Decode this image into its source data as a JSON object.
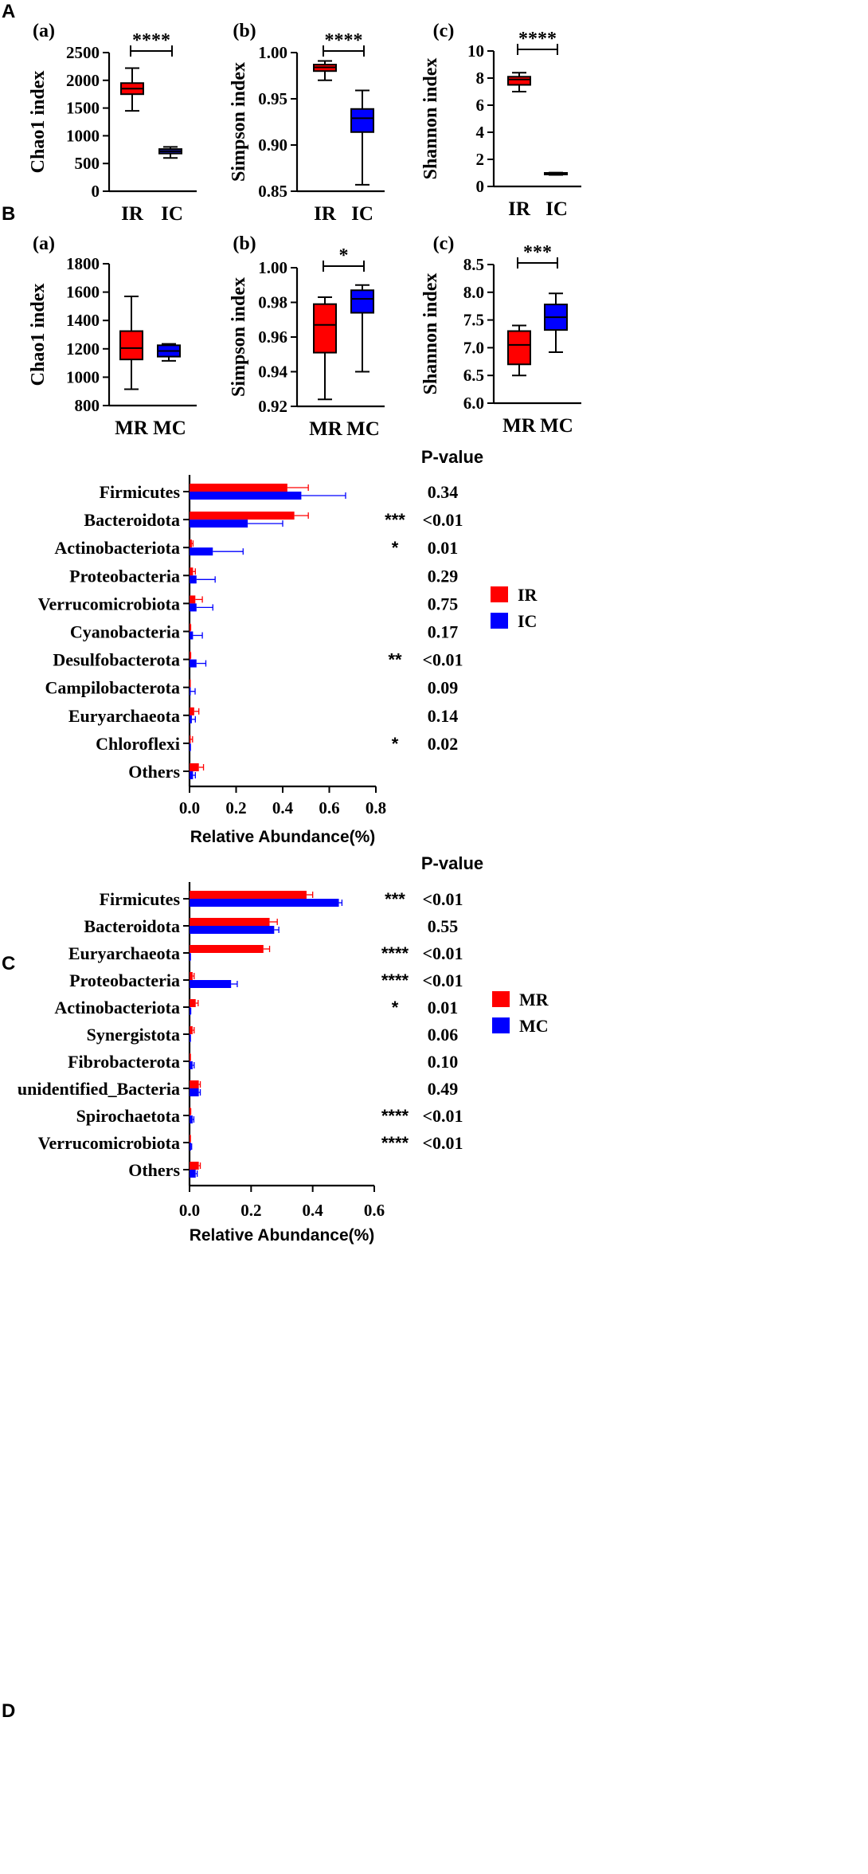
{
  "colors": {
    "ir": "#ff0000",
    "ic": "#0000ff",
    "mr": "#ff0000",
    "mc": "#0000ff",
    "ic_chao": "#1a1aa8",
    "ic_shannon": "#1a1aa8"
  },
  "sections": {
    "A": "A",
    "B": "B",
    "C": "C",
    "D": "D"
  },
  "chart_data": [
    {
      "type": "box",
      "id": "A-a",
      "panel_label": "(a)",
      "ylabel": "Chao1 index",
      "ylim": [
        0,
        2500
      ],
      "yticks": [
        0,
        500,
        1000,
        1500,
        2000,
        2500
      ],
      "tick_labels": [
        "0",
        "500",
        "1000",
        "1500",
        "2000",
        "2500"
      ],
      "categories": [
        "IR",
        "IC"
      ],
      "boxes": [
        {
          "name": "IR",
          "min": 1450,
          "q1": 1750,
          "median": 1850,
          "q3": 1950,
          "max": 2220,
          "color_key": "ir"
        },
        {
          "name": "IC",
          "min": 600,
          "q1": 680,
          "median": 720,
          "q3": 760,
          "max": 800,
          "color_key": "ic_chao"
        }
      ],
      "significance": "****"
    },
    {
      "type": "box",
      "id": "A-b",
      "panel_label": "(b)",
      "ylabel": "Simpson index",
      "ylim": [
        0.85,
        1.0
      ],
      "yticks": [
        0.85,
        0.9,
        0.95,
        1.0
      ],
      "tick_labels": [
        "0.85",
        "0.90",
        "0.95",
        "1.00"
      ],
      "categories": [
        "IR",
        "IC"
      ],
      "boxes": [
        {
          "name": "IR",
          "min": 0.97,
          "q1": 0.98,
          "median": 0.984,
          "q3": 0.987,
          "max": 0.991,
          "color_key": "ir"
        },
        {
          "name": "IC",
          "min": 0.857,
          "q1": 0.914,
          "median": 0.929,
          "q3": 0.939,
          "max": 0.959,
          "color_key": "ic"
        }
      ],
      "significance": "****"
    },
    {
      "type": "box",
      "id": "A-c",
      "panel_label": "(c)",
      "ylabel": "Shannon index",
      "ylim": [
        0,
        10
      ],
      "yticks": [
        0,
        2,
        4,
        6,
        8,
        10
      ],
      "tick_labels": [
        "0",
        "2",
        "4",
        "6",
        "8",
        "10"
      ],
      "categories": [
        "IR",
        "IC"
      ],
      "boxes": [
        {
          "name": "IR",
          "min": 7.0,
          "q1": 7.5,
          "median": 7.9,
          "q3": 8.1,
          "max": 8.4,
          "color_key": "ir"
        },
        {
          "name": "IC",
          "min": 0.85,
          "q1": 0.9,
          "median": 0.95,
          "q3": 1.0,
          "max": 1.02,
          "color_key": "ic_shannon"
        }
      ],
      "significance": "****"
    },
    {
      "type": "box",
      "id": "B-a",
      "panel_label": "(a)",
      "ylabel": "Chao1 index",
      "ylim": [
        800,
        1800
      ],
      "yticks": [
        800,
        1000,
        1200,
        1400,
        1600,
        1800
      ],
      "tick_labels": [
        "800",
        "1000",
        "1200",
        "1400",
        "1600",
        "1800"
      ],
      "categories": [
        "MR",
        "MC"
      ],
      "boxes": [
        {
          "name": "MR",
          "min": 915,
          "q1": 1125,
          "median": 1205,
          "q3": 1325,
          "max": 1570,
          "color_key": "mr"
        },
        {
          "name": "MC",
          "min": 1115,
          "q1": 1145,
          "median": 1185,
          "q3": 1225,
          "max": 1235,
          "color_key": "mc"
        }
      ],
      "significance": ""
    },
    {
      "type": "box",
      "id": "B-b",
      "panel_label": "(b)",
      "ylabel": "Simpson index",
      "ylim": [
        0.92,
        1.0
      ],
      "yticks": [
        0.92,
        0.94,
        0.96,
        0.98,
        1.0
      ],
      "tick_labels": [
        "0.92",
        "0.94",
        "0.96",
        "0.98",
        "1.00"
      ],
      "categories": [
        "MR",
        "MC"
      ],
      "boxes": [
        {
          "name": "MR",
          "min": 0.924,
          "q1": 0.951,
          "median": 0.967,
          "q3": 0.979,
          "max": 0.983,
          "color_key": "mr"
        },
        {
          "name": "MC",
          "min": 0.94,
          "q1": 0.974,
          "median": 0.982,
          "q3": 0.987,
          "max": 0.99,
          "color_key": "mc"
        }
      ],
      "significance": "*"
    },
    {
      "type": "box",
      "id": "B-c",
      "panel_label": "(c)",
      "ylabel": "Shannon index",
      "ylim": [
        6.0,
        8.5
      ],
      "yticks": [
        6.0,
        6.5,
        7.0,
        7.5,
        8.0,
        8.5
      ],
      "tick_labels": [
        "6.0",
        "6.5",
        "7.0",
        "7.5",
        "8.0",
        "8.5"
      ],
      "categories": [
        "MR",
        "MC"
      ],
      "boxes": [
        {
          "name": "MR",
          "min": 6.5,
          "q1": 6.7,
          "median": 7.05,
          "q3": 7.3,
          "max": 7.4,
          "color_key": "mr"
        },
        {
          "name": "MC",
          "min": 6.92,
          "q1": 7.32,
          "median": 7.55,
          "q3": 7.78,
          "max": 7.98,
          "color_key": "mc"
        }
      ],
      "significance": "***"
    },
    {
      "type": "bar",
      "id": "C",
      "orientation": "horizontal",
      "xlabel": "Relative Abundance(%)",
      "pvalue_header": "P-value",
      "xlim": [
        0,
        0.8
      ],
      "xticks": [
        0,
        0.2,
        0.4,
        0.6,
        0.8
      ],
      "tick_labels": [
        "0.0",
        "0.2",
        "0.4",
        "0.6",
        "0.8"
      ],
      "categories": [
        "Firmicutes",
        "Bacteroidota",
        "Actinobacteriota",
        "Proteobacteria",
        "Verrucomicrobiota",
        "Cyanobacteria",
        "Desulfobacterota",
        "Campilobacterota",
        "Euryarchaeota",
        "Chloroflexi",
        "Others"
      ],
      "series": [
        {
          "name": "IR",
          "color_key": "ir",
          "values": [
            0.42,
            0.45,
            0.01,
            0.015,
            0.025,
            0.003,
            0.003,
            0.002,
            0.02,
            0.003,
            0.04
          ],
          "errors": [
            0.09,
            0.06,
            0.005,
            0.01,
            0.03,
            0.002,
            0.002,
            0.001,
            0.02,
            0.01,
            0.02
          ]
        },
        {
          "name": "IC",
          "color_key": "ic",
          "values": [
            0.48,
            0.25,
            0.1,
            0.03,
            0.03,
            0.015,
            0.03,
            0.004,
            0.01,
            0.002,
            0.015
          ],
          "errors": [
            0.19,
            0.15,
            0.13,
            0.08,
            0.07,
            0.04,
            0.04,
            0.02,
            0.015,
            0.002,
            0.01
          ]
        }
      ],
      "significance": [
        "",
        "***",
        "*",
        "",
        "",
        "",
        "**",
        "",
        "",
        "*",
        ""
      ],
      "pvalues": [
        "0.34",
        "<0.01",
        "0.01",
        "0.29",
        "0.75",
        "0.17",
        "<0.01",
        "0.09",
        "0.14",
        "0.02",
        ""
      ],
      "legend": [
        "IR",
        "IC"
      ]
    },
    {
      "type": "bar",
      "id": "D",
      "orientation": "horizontal",
      "xlabel": "Relative Abundance(%)",
      "pvalue_header": "P-value",
      "xlim": [
        0,
        0.6
      ],
      "xticks": [
        0,
        0.2,
        0.4,
        0.6
      ],
      "tick_labels": [
        "0.0",
        "0.2",
        "0.4",
        "0.6"
      ],
      "categories": [
        "Firmicutes",
        "Bacteroidota",
        "Euryarchaeota",
        "Proteobacteria",
        "Actinobacteriota",
        "Synergistota",
        "Fibrobacterota",
        "unidentified_Bacteria",
        "Spirochaetota",
        "Verrucomicrobiota",
        "Others"
      ],
      "series": [
        {
          "name": "MR",
          "color_key": "mr",
          "values": [
            0.38,
            0.26,
            0.24,
            0.01,
            0.02,
            0.01,
            0.002,
            0.03,
            0.003,
            0.002,
            0.03
          ],
          "errors": [
            0.02,
            0.025,
            0.02,
            0.005,
            0.008,
            0.005,
            0.001,
            0.005,
            0.001,
            0.001,
            0.005
          ]
        },
        {
          "name": "MC",
          "color_key": "mc",
          "values": [
            0.485,
            0.275,
            0.002,
            0.135,
            0.003,
            0.002,
            0.01,
            0.03,
            0.01,
            0.005,
            0.02
          ],
          "errors": [
            0.01,
            0.015,
            0.001,
            0.02,
            0.001,
            0.001,
            0.005,
            0.005,
            0.004,
            0.002,
            0.005
          ]
        }
      ],
      "significance": [
        "***",
        "",
        "****",
        "****",
        "*",
        "",
        "",
        "",
        "****",
        "****",
        ""
      ],
      "pvalues": [
        "<0.01",
        "0.55",
        "<0.01",
        "<0.01",
        "0.01",
        "0.06",
        "0.10",
        "0.49",
        "<0.01",
        "<0.01",
        ""
      ],
      "legend": [
        "MR",
        "MC"
      ]
    }
  ]
}
